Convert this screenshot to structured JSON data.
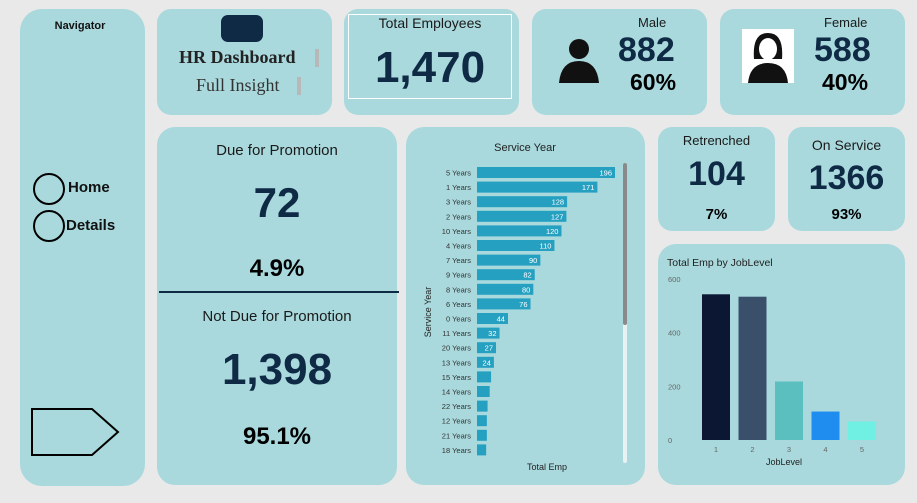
{
  "nav": {
    "title": "Navigator",
    "home": "Home",
    "details": "Details"
  },
  "brand": {
    "title": "HR Dashboard",
    "subtitle": "Full Insight"
  },
  "total": {
    "label": "Total Employees",
    "value": "1,470"
  },
  "male": {
    "label": "Male",
    "value": "882",
    "pct": "60%"
  },
  "female": {
    "label": "Female",
    "value": "588",
    "pct": "40%"
  },
  "promotion": {
    "due_label": "Due for Promotion",
    "due_value": "72",
    "due_pct": "4.9%",
    "not_label": "Not Due for Promotion",
    "not_value": "1,398",
    "not_pct": "95.1%"
  },
  "retrenched": {
    "label": "Retrenched",
    "value": "104",
    "pct": "7%"
  },
  "on_service": {
    "label": "On Service",
    "value": "1366",
    "pct": "93%"
  },
  "colors": {
    "card": "#a9d9dd",
    "bar": "#26a0c0",
    "dark": "#0e2a45"
  },
  "chart_data": [
    {
      "type": "bar",
      "orientation": "horizontal",
      "title": "Service Year",
      "xlabel": "Total Emp",
      "ylabel": "Service Year",
      "categories": [
        "5 Years",
        "1 Years",
        "3 Years",
        "2 Years",
        "10 Years",
        "4 Years",
        "7 Years",
        "9 Years",
        "8 Years",
        "6 Years",
        "0 Years",
        "11 Years",
        "20 Years",
        "13 Years",
        "15 Years",
        "14 Years",
        "22 Years",
        "12 Years",
        "21 Years",
        "18 Years"
      ],
      "values": [
        196,
        171,
        128,
        127,
        120,
        110,
        90,
        82,
        80,
        76,
        44,
        32,
        27,
        24,
        20,
        18,
        15,
        14,
        14,
        13
      ],
      "labeled_count": 14
    },
    {
      "type": "bar",
      "title": "Total Emp by JobLevel",
      "xlabel": "JobLevel",
      "ylabel": "",
      "categories": [
        "1",
        "2",
        "3",
        "4",
        "5"
      ],
      "values": [
        543,
        534,
        218,
        106,
        69
      ],
      "ylim": [
        0,
        600
      ],
      "yticks": [
        "0",
        "200",
        "400",
        "600"
      ],
      "colors": [
        "#0c1733",
        "#3a4f6a",
        "#5cbfbf",
        "#1f8cf0",
        "#6ff0e2"
      ]
    }
  ]
}
